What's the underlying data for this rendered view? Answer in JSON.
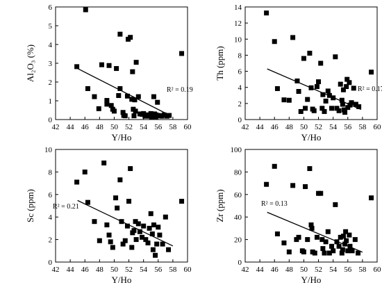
{
  "chart_data": [
    {
      "type": "scatter",
      "xlabel": "Y/Ho",
      "ylabel": "Al₂O₃ (%)",
      "xlim": [
        42,
        60
      ],
      "ylim": [
        0,
        6
      ],
      "xticks": [
        42,
        44,
        46,
        48,
        50,
        52,
        54,
        56,
        58,
        60
      ],
      "yticks": [
        0,
        1,
        2,
        3,
        4,
        5,
        6
      ],
      "r2": "R² = 0.19",
      "trendline": {
        "x": [
          45,
          57.8
        ],
        "y": [
          2.72,
          0.18
        ]
      },
      "points": [
        [
          44.9,
          2.82
        ],
        [
          46.1,
          5.85
        ],
        [
          46.4,
          1.65
        ],
        [
          47.3,
          1.22
        ],
        [
          47.9,
          0.58
        ],
        [
          48.3,
          2.92
        ],
        [
          49.0,
          1.02
        ],
        [
          49.0,
          0.82
        ],
        [
          49.3,
          2.88
        ],
        [
          49.6,
          0.75
        ],
        [
          49.8,
          0.55
        ],
        [
          50.0,
          0.45
        ],
        [
          50.3,
          2.72
        ],
        [
          50.6,
          1.28
        ],
        [
          50.8,
          4.55
        ],
        [
          50.8,
          1.65
        ],
        [
          51.2,
          0.38
        ],
        [
          51.3,
          0.22
        ],
        [
          51.5,
          0.2
        ],
        [
          51.8,
          1.25
        ],
        [
          51.9,
          4.28
        ],
        [
          52.2,
          4.38
        ],
        [
          52.4,
          1.08
        ],
        [
          52.5,
          2.55
        ],
        [
          52.6,
          0.55
        ],
        [
          52.7,
          0.2
        ],
        [
          52.8,
          1.05
        ],
        [
          52.9,
          0.45
        ],
        [
          53.0,
          3.05
        ],
        [
          53.3,
          1.22
        ],
        [
          53.5,
          0.3
        ],
        [
          53.8,
          0.28
        ],
        [
          54.0,
          0.32
        ],
        [
          54.2,
          0.18
        ],
        [
          54.5,
          0.25
        ],
        [
          54.8,
          0.18
        ],
        [
          55.0,
          0.32
        ],
        [
          55.1,
          0.12
        ],
        [
          55.2,
          0.22
        ],
        [
          55.3,
          0.18
        ],
        [
          55.4,
          1.22
        ],
        [
          55.5,
          0.3
        ],
        [
          55.6,
          0.15
        ],
        [
          55.7,
          0.25
        ],
        [
          55.9,
          0.92
        ],
        [
          56.0,
          0.22
        ],
        [
          56.2,
          0.2
        ],
        [
          56.5,
          0.18
        ],
        [
          56.8,
          0.25
        ],
        [
          57.2,
          0.18
        ],
        [
          57.5,
          0.22
        ],
        [
          59.2,
          3.52
        ]
      ]
    },
    {
      "type": "scatter",
      "xlabel": "Y/Ho",
      "ylabel": "Th (ppm)",
      "xlim": [
        42,
        60
      ],
      "ylim": [
        0,
        14
      ],
      "xticks": [
        42,
        44,
        46,
        48,
        50,
        52,
        54,
        56,
        58,
        60
      ],
      "yticks": [
        0,
        2,
        4,
        6,
        8,
        10,
        12,
        14
      ],
      "r2": "R² = 0.17",
      "trendline": {
        "x": [
          45,
          57.8
        ],
        "y": [
          6.3,
          1.25
        ]
      },
      "points": [
        [
          44.9,
          13.25
        ],
        [
          46.0,
          9.7
        ],
        [
          46.4,
          3.85
        ],
        [
          47.3,
          2.45
        ],
        [
          48.0,
          2.4
        ],
        [
          48.5,
          10.2
        ],
        [
          49.1,
          4.8
        ],
        [
          49.3,
          3.5
        ],
        [
          49.6,
          1.0
        ],
        [
          50.0,
          7.6
        ],
        [
          50.2,
          1.4
        ],
        [
          50.5,
          2.5
        ],
        [
          50.8,
          8.25
        ],
        [
          51.0,
          3.95
        ],
        [
          51.2,
          1.3
        ],
        [
          51.4,
          1.1
        ],
        [
          51.8,
          4.1
        ],
        [
          52.0,
          4.7
        ],
        [
          52.3,
          7.0
        ],
        [
          52.5,
          1.4
        ],
        [
          52.6,
          3.1
        ],
        [
          52.8,
          1.0
        ],
        [
          53.0,
          2.3
        ],
        [
          53.3,
          3.55
        ],
        [
          53.5,
          3.0
        ],
        [
          53.8,
          1.4
        ],
        [
          54.0,
          2.7
        ],
        [
          54.3,
          7.8
        ],
        [
          54.5,
          1.4
        ],
        [
          54.8,
          1.1
        ],
        [
          55.0,
          4.4
        ],
        [
          55.2,
          2.4
        ],
        [
          55.3,
          1.9
        ],
        [
          55.4,
          3.7
        ],
        [
          55.5,
          1.2
        ],
        [
          55.6,
          0.9
        ],
        [
          55.8,
          4.1
        ],
        [
          55.9,
          5.0
        ],
        [
          56.0,
          1.5
        ],
        [
          56.2,
          4.6
        ],
        [
          56.3,
          1.8
        ],
        [
          56.5,
          2.1
        ],
        [
          56.8,
          3.9
        ],
        [
          57.1,
          1.9
        ],
        [
          57.5,
          1.6
        ],
        [
          59.2,
          5.9
        ]
      ]
    },
    {
      "type": "scatter",
      "xlabel": "Y/Ho",
      "ylabel": "Sc (ppm)",
      "xlim": [
        42,
        60
      ],
      "ylim": [
        0,
        10
      ],
      "xticks": [
        42,
        44,
        46,
        48,
        50,
        52,
        54,
        56,
        58,
        60
      ],
      "yticks": [
        0,
        2,
        4,
        6,
        8,
        10
      ],
      "r2": "R² = 0.21",
      "trendline": {
        "x": [
          45,
          58
        ],
        "y": [
          5.47,
          1.43
        ]
      },
      "points": [
        [
          44.9,
          7.1
        ],
        [
          46.0,
          8.0
        ],
        [
          46.4,
          5.3
        ],
        [
          47.3,
          3.6
        ],
        [
          48.0,
          1.9
        ],
        [
          48.6,
          8.8
        ],
        [
          49.0,
          3.3
        ],
        [
          49.3,
          2.4
        ],
        [
          49.5,
          1.8
        ],
        [
          49.8,
          1.3
        ],
        [
          50.2,
          5.7
        ],
        [
          50.4,
          4.8
        ],
        [
          50.8,
          7.3
        ],
        [
          51.0,
          3.6
        ],
        [
          51.2,
          1.6
        ],
        [
          51.5,
          1.9
        ],
        [
          51.8,
          3.2
        ],
        [
          52.0,
          5.4
        ],
        [
          52.2,
          8.3
        ],
        [
          52.4,
          1.3
        ],
        [
          52.5,
          2.6
        ],
        [
          52.7,
          2.8
        ],
        [
          52.9,
          3.6
        ],
        [
          53.0,
          2.0
        ],
        [
          53.3,
          3.4
        ],
        [
          53.5,
          2.7
        ],
        [
          53.8,
          2.2
        ],
        [
          54.0,
          3.2
        ],
        [
          54.3,
          2.0
        ],
        [
          54.6,
          1.7
        ],
        [
          54.8,
          3.0
        ],
        [
          55.0,
          4.3
        ],
        [
          55.2,
          2.5
        ],
        [
          55.3,
          1.1
        ],
        [
          55.4,
          3.3
        ],
        [
          55.6,
          0.6
        ],
        [
          55.8,
          1.6
        ],
        [
          56.0,
          3.1
        ],
        [
          56.2,
          2.4
        ],
        [
          56.6,
          1.6
        ],
        [
          57.0,
          4.0
        ],
        [
          57.4,
          1.1
        ],
        [
          59.2,
          5.4
        ]
      ]
    },
    {
      "type": "scatter",
      "xlabel": "Y/Ho",
      "ylabel": "Zr (ppm)",
      "xlim": [
        42,
        60
      ],
      "ylim": [
        0,
        100
      ],
      "xticks": [
        42,
        44,
        46,
        48,
        50,
        52,
        54,
        56,
        58,
        60
      ],
      "yticks": [
        0,
        20,
        40,
        60,
        80,
        100
      ],
      "r2": "R² = 0.13",
      "trendline": {
        "x": [
          45,
          58
        ],
        "y": [
          44.2,
          8.8
        ]
      },
      "points": [
        [
          44.9,
          69
        ],
        [
          46.0,
          85
        ],
        [
          46.4,
          25
        ],
        [
          47.3,
          17
        ],
        [
          48.0,
          9
        ],
        [
          48.5,
          68
        ],
        [
          49.0,
          20
        ],
        [
          49.3,
          22
        ],
        [
          49.8,
          10
        ],
        [
          50.0,
          9
        ],
        [
          50.2,
          67
        ],
        [
          50.5,
          20
        ],
        [
          50.8,
          83
        ],
        [
          51.0,
          33
        ],
        [
          51.1,
          30
        ],
        [
          51.2,
          9
        ],
        [
          51.5,
          8
        ],
        [
          51.8,
          22
        ],
        [
          52.0,
          61
        ],
        [
          52.3,
          61
        ],
        [
          52.5,
          20
        ],
        [
          52.6,
          12
        ],
        [
          52.8,
          8
        ],
        [
          53.0,
          18
        ],
        [
          53.3,
          27
        ],
        [
          53.5,
          8
        ],
        [
          53.8,
          14
        ],
        [
          54.0,
          10
        ],
        [
          54.3,
          51
        ],
        [
          54.5,
          18
        ],
        [
          54.8,
          14
        ],
        [
          55.0,
          22
        ],
        [
          55.2,
          8
        ],
        [
          55.3,
          11
        ],
        [
          55.4,
          23
        ],
        [
          55.6,
          16
        ],
        [
          55.7,
          27
        ],
        [
          55.8,
          19
        ],
        [
          56.0,
          10
        ],
        [
          56.2,
          24
        ],
        [
          56.3,
          14
        ],
        [
          56.6,
          10
        ],
        [
          57.0,
          20
        ],
        [
          57.4,
          8
        ],
        [
          59.2,
          57
        ]
      ]
    }
  ]
}
